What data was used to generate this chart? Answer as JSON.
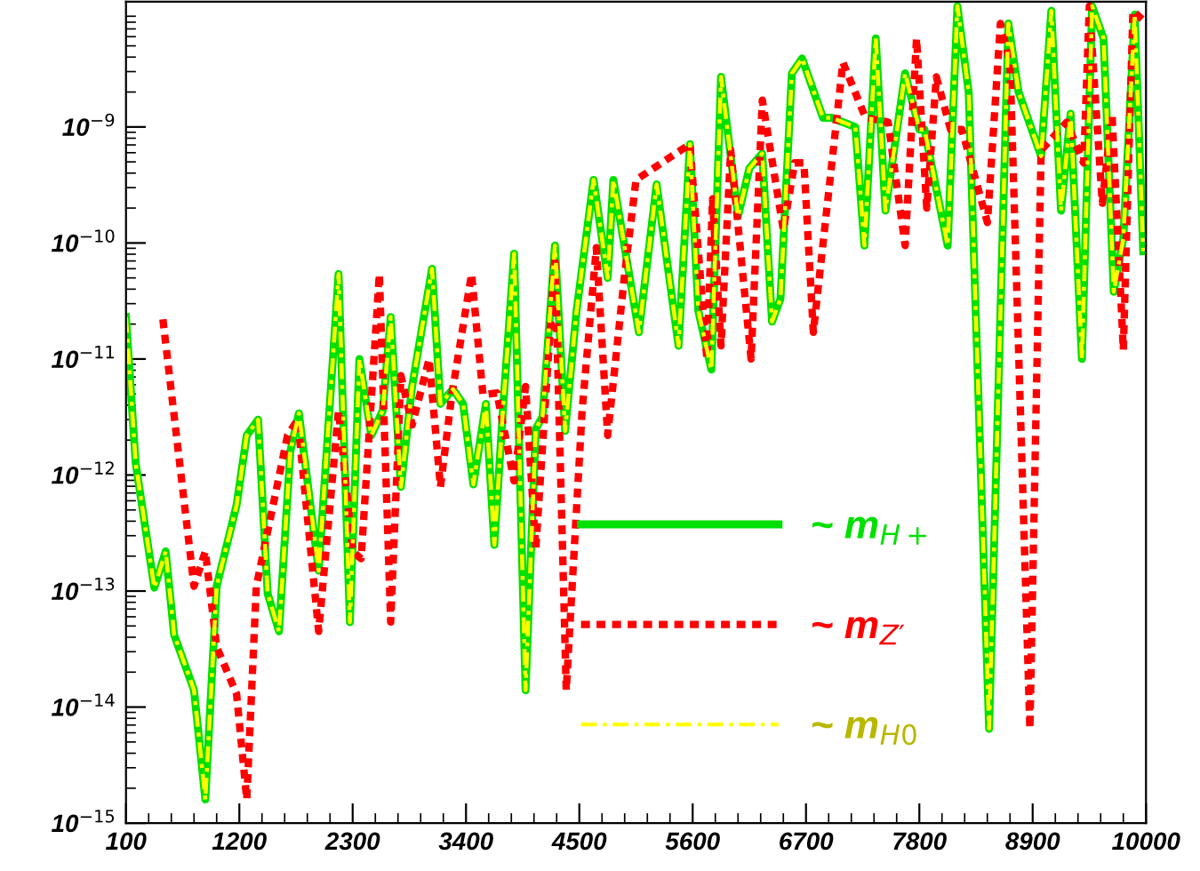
{
  "chart_data": {
    "type": "line",
    "log": "y",
    "grid": false,
    "legend": "bottom",
    "xlim": [
      100,
      10000
    ],
    "ylim": [
      1e-15,
      1.2e-08
    ],
    "xticks": [
      100,
      1200,
      2300,
      3400,
      4500,
      5600,
      6700,
      7800,
      8900,
      10000
    ],
    "yticks": [
      {
        "value": 1e-15,
        "label": "10$^{−15}$"
      },
      {
        "value": 1e-14,
        "label": "10$^{−14}$"
      },
      {
        "value": 1e-13,
        "label": "10$^{−13}$"
      },
      {
        "value": 1e-12,
        "label": "10$^{−12}$"
      },
      {
        "value": 1e-11,
        "label": "10$^{−11}$"
      },
      {
        "value": 1e-10,
        "label": "10$^{−10}$"
      },
      {
        "value": 1e-09,
        "label": "10$^{−9}$"
      }
    ],
    "series": [
      {
        "name": "~ m$_{H+}$",
        "color": "#00e000",
        "line_style": "solid",
        "x": [
          100,
          194,
          375,
          485,
          567,
          760,
          870,
          980,
          1173,
          1272,
          1382,
          1475,
          1585,
          1695,
          1778,
          1970,
          2163,
          2273,
          2365,
          2481,
          2592,
          2669,
          2768,
          2877,
          3070,
          3152,
          3273,
          3372,
          3471,
          3593,
          3675,
          3758,
          3867,
          3978,
          4077,
          4143,
          4263,
          4362,
          4473,
          4638,
          4775,
          4830,
          5078,
          5250,
          5463,
          5573,
          5655,
          5781,
          5875,
          6040,
          6150,
          6275,
          6370,
          6452,
          6563,
          6662,
          6865,
          6948,
          7179,
          7267,
          7377,
          7471,
          7662,
          7800,
          7850,
          8075,
          8169,
          8279,
          8477,
          8664,
          8763,
          8982,
          9081,
          9175,
          9268,
          9378,
          9477,
          9588,
          9687,
          9780,
          9890,
          9973
        ],
        "values": [
          2.3e-11,
          1.26e-12,
          1.07e-13,
          2.2e-13,
          4.2e-14,
          1.4e-14,
          1.6e-15,
          1.1e-13,
          5.5e-13,
          2.2e-12,
          3e-12,
          9.5e-14,
          4.5e-14,
          1.6e-12,
          3.4e-12,
          1.5e-13,
          5.4e-11,
          5.4e-14,
          1e-11,
          2.2e-12,
          3.6e-12,
          2.3e-11,
          7.9e-13,
          5.8e-12,
          6e-11,
          4.1e-12,
          5.5e-12,
          4.1e-12,
          8.3e-13,
          4.1e-12,
          2.5e-13,
          3.6e-12,
          8.1e-11,
          1.4e-14,
          2.5e-12,
          3.2e-12,
          9.5e-11,
          2.4e-12,
          2.6e-11,
          3.5e-10,
          5e-11,
          3.5e-10,
          1.7e-11,
          3.2e-10,
          1.3e-11,
          7.1e-10,
          2.6e-11,
          8.1e-12,
          2.7e-09,
          1.7e-10,
          4.4e-10,
          5.9e-10,
          2.1e-11,
          3.3e-11,
          2.9e-09,
          3.9e-09,
          1.2e-09,
          1.2e-09,
          1e-09,
          9.5e-11,
          5.8e-09,
          1.9e-10,
          2.9e-09,
          9.5e-10,
          9.5e-10,
          9.5e-11,
          1.1e-08,
          2e-09,
          6.5e-15,
          7.8e-09,
          2e-09,
          5.6e-10,
          1e-08,
          1.9e-10,
          1.3e-09,
          1e-11,
          1.1e-08,
          5.8e-09,
          3.8e-11,
          1.1e-10,
          9.3e-09,
          8.5e-11
        ]
      },
      {
        "name": "~ m$_{Z′}$",
        "color": "#ff0000",
        "line_style": "dotted",
        "x": [
          458,
          760,
          870,
          980,
          1173,
          1272,
          1365,
          1668,
          1767,
          1970,
          2163,
          2300,
          2382,
          2559,
          2669,
          2768,
          2877,
          3042,
          3152,
          3262,
          3454,
          3565,
          3700,
          3867,
          3978,
          4077,
          4263,
          4373,
          4527,
          4665,
          4775,
          4940,
          5050,
          5573,
          5738,
          5793,
          5875,
          5969,
          6167,
          6276,
          6480,
          6590,
          6680,
          6771,
          7058,
          7278,
          7497,
          7662,
          7773,
          7872,
          7965,
          8103,
          8213,
          8461,
          8587,
          8680,
          8873,
          8982,
          9230,
          9395,
          9450,
          9576,
          9670,
          9780,
          9873,
          9973
        ],
        "values": [
          2.2e-11,
          1.1e-13,
          2.2e-13,
          3.3e-14,
          1.3e-14,
          1.6e-15,
          1.1e-13,
          2.2e-12,
          3e-12,
          4.5e-14,
          3.6e-12,
          2.2e-13,
          1.9e-13,
          5.4e-11,
          5.4e-14,
          7.2e-12,
          2.7e-12,
          1e-11,
          7.9e-13,
          4.9e-12,
          5.4e-11,
          4.9e-12,
          5.1e-12,
          8.9e-13,
          5.8e-12,
          2.3e-13,
          7.6e-11,
          1.4e-14,
          3.6e-12,
          9.1e-11,
          2.2e-12,
          5.4e-11,
          3.5e-10,
          7.1e-10,
          1e-11,
          2.4e-10,
          1.3e-11,
          6.3e-10,
          1e-11,
          1.7e-09,
          1.3e-10,
          4.9e-10,
          4.9e-10,
          1.7e-11,
          3.6e-09,
          1.2e-09,
          1.1e-09,
          9.5e-11,
          5.8e-09,
          2e-10,
          2.7e-09,
          9.5e-10,
          9.5e-10,
          1.5e-10,
          7.8e-09,
          3.6e-09,
          6.5e-15,
          6.3e-10,
          1.1e-09,
          4.9e-10,
          1.1e-08,
          2.2e-10,
          1.3e-09,
          1.2e-11,
          1e-08,
          8.3e-09
        ]
      },
      {
        "name": "~ m$_{H0}$",
        "color": "#ffff00",
        "line_style": "dashdot",
        "x": [
          100,
          194,
          375,
          485,
          567,
          760,
          870,
          980,
          1173,
          1272,
          1382,
          1475,
          1585,
          1695,
          1778,
          1970,
          2163,
          2273,
          2365,
          2481,
          2592,
          2669,
          2768,
          2877,
          3070,
          3152,
          3273,
          3372,
          3471,
          3593,
          3675,
          3758,
          3867,
          3978,
          4077,
          4143,
          4263,
          4362,
          4473,
          4638,
          4775,
          4830,
          5078,
          5250,
          5463,
          5573,
          5655,
          5781,
          5875,
          6040,
          6150,
          6275,
          6370,
          6452,
          6563,
          6662,
          6865,
          6948,
          7179,
          7267,
          7377,
          7471,
          7662,
          7800,
          7850,
          8075,
          8169,
          8279,
          8477,
          8664,
          8763,
          8982,
          9081,
          9175,
          9268,
          9378,
          9477,
          9588,
          9687,
          9780,
          9890,
          9973
        ],
        "values": [
          2.3e-11,
          1.26e-12,
          1.07e-13,
          2.2e-13,
          4.2e-14,
          1.4e-14,
          1.6e-15,
          1.1e-13,
          5.5e-13,
          2.2e-12,
          3e-12,
          9.5e-14,
          4.5e-14,
          1.6e-12,
          3.4e-12,
          1.5e-13,
          5.4e-11,
          5.4e-14,
          1e-11,
          2.2e-12,
          3.6e-12,
          2.3e-11,
          7.9e-13,
          5.8e-12,
          6e-11,
          4.1e-12,
          5.5e-12,
          4.1e-12,
          8.3e-13,
          4.1e-12,
          2.5e-13,
          3.6e-12,
          8.1e-11,
          1.4e-14,
          2.5e-12,
          3.2e-12,
          9.5e-11,
          2.4e-12,
          2.6e-11,
          3.5e-10,
          5e-11,
          3.5e-10,
          1.7e-11,
          3.2e-10,
          1.3e-11,
          7.1e-10,
          2.6e-11,
          8.1e-12,
          2.7e-09,
          1.7e-10,
          4.4e-10,
          5.9e-10,
          2.1e-11,
          3.3e-11,
          2.9e-09,
          3.9e-09,
          1.2e-09,
          1.2e-09,
          1e-09,
          9.5e-11,
          5.8e-09,
          1.9e-10,
          2.9e-09,
          9.5e-10,
          9.5e-10,
          9.5e-11,
          1.1e-08,
          2e-09,
          6.5e-15,
          7.8e-09,
          2e-09,
          5.6e-10,
          1e-08,
          1.9e-10,
          1.3e-09,
          1e-11,
          1.1e-08,
          5.8e-09,
          3.8e-11,
          1.1e-10,
          9.3e-09,
          8.5e-11
        ]
      }
    ]
  }
}
